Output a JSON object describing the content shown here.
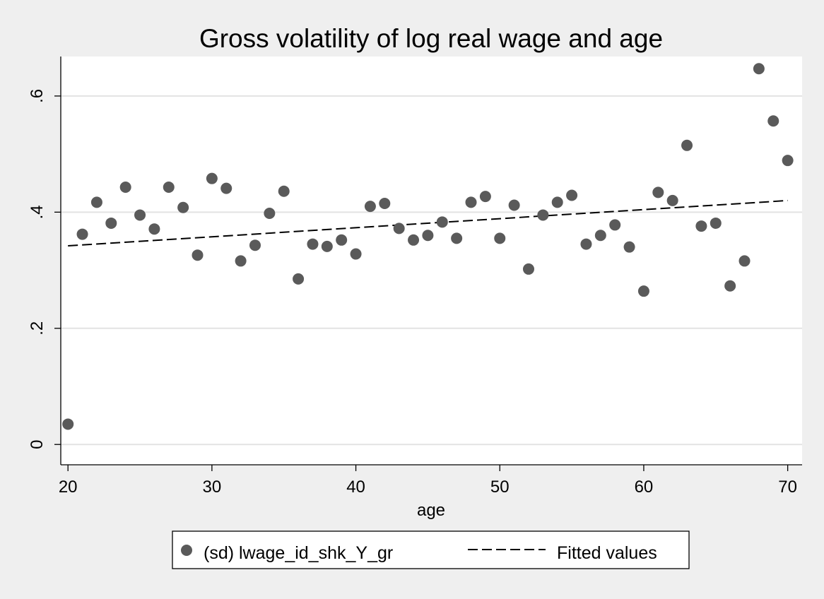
{
  "chart_data": {
    "type": "scatter",
    "title": "Gross volatility of log real wage and age",
    "xlabel": "age",
    "ylabel": "",
    "xlim": [
      19.5,
      71
    ],
    "ylim": [
      -0.035,
      0.668
    ],
    "x_ticks": [
      {
        "value": 20,
        "label": "20"
      },
      {
        "value": 30,
        "label": "30"
      },
      {
        "value": 40,
        "label": "40"
      },
      {
        "value": 50,
        "label": "50"
      },
      {
        "value": 60,
        "label": "60"
      },
      {
        "value": 70,
        "label": "70"
      }
    ],
    "y_ticks": [
      {
        "value": 0,
        "label": "0"
      },
      {
        "value": 0.2,
        "label": ".2"
      },
      {
        "value": 0.4,
        "label": ".4"
      },
      {
        "value": 0.6,
        "label": ".6"
      }
    ],
    "grid": "horizontal",
    "legend_position": "bottom",
    "series": [
      {
        "name": "(sd) lwage_id_shk_Y_gr",
        "type": "scatter",
        "color": "#5a5a5a",
        "x": [
          20,
          21,
          22,
          23,
          24,
          25,
          26,
          27,
          28,
          29,
          30,
          31,
          32,
          33,
          34,
          35,
          36,
          37,
          38,
          39,
          40,
          41,
          42,
          43,
          44,
          45,
          46,
          47,
          48,
          49,
          50,
          51,
          52,
          53,
          54,
          55,
          56,
          57,
          58,
          59,
          60,
          61,
          62,
          63,
          64,
          65,
          66,
          67,
          68,
          69,
          70
        ],
        "y": [
          0.035,
          0.362,
          0.417,
          0.381,
          0.443,
          0.395,
          0.371,
          0.443,
          0.408,
          0.326,
          0.458,
          0.441,
          0.316,
          0.343,
          0.398,
          0.436,
          0.285,
          0.345,
          0.341,
          0.352,
          0.328,
          0.41,
          0.415,
          0.372,
          0.352,
          0.36,
          0.383,
          0.355,
          0.417,
          0.427,
          0.355,
          0.412,
          0.302,
          0.395,
          0.417,
          0.429,
          0.345,
          0.36,
          0.378,
          0.34,
          0.264,
          0.434,
          0.42,
          0.515,
          0.376,
          0.381,
          0.273,
          0.316,
          0.647,
          0.557,
          0.489
        ]
      },
      {
        "name": "Fitted values",
        "type": "line",
        "style": "dashed",
        "color": "#000000",
        "x": [
          20,
          70
        ],
        "y": [
          0.342,
          0.42
        ]
      }
    ],
    "colors": {
      "background": "#efefef",
      "plot_background": "#ffffff",
      "gridline": "#e3e3e3",
      "marker": "#5a5a5a",
      "fit_line": "#000000"
    }
  }
}
